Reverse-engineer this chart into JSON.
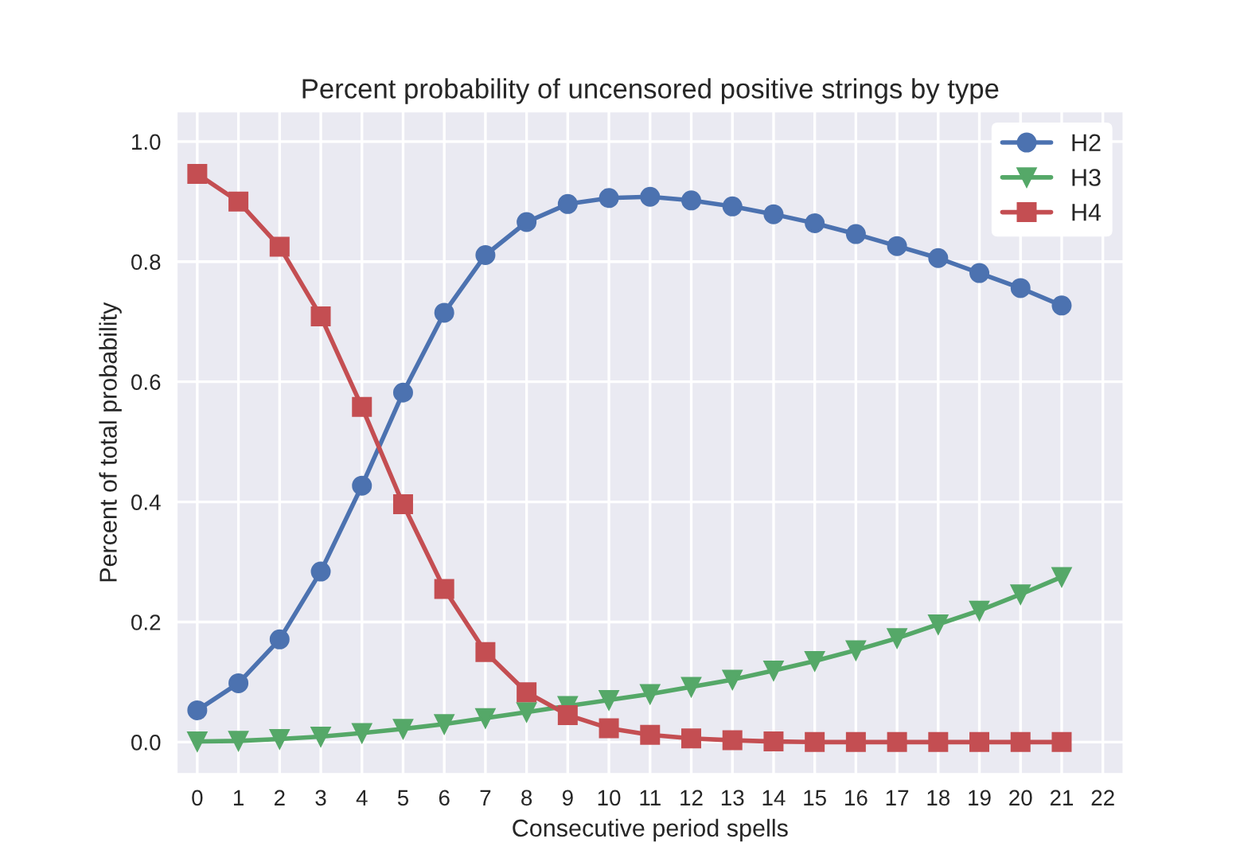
{
  "chart_data": {
    "type": "line",
    "title": "Percent probability of uncensored positive strings by type",
    "xlabel": "Consecutive period spells",
    "ylabel": "Percent of total probability",
    "x": [
      0,
      1,
      2,
      3,
      4,
      5,
      6,
      7,
      8,
      9,
      10,
      11,
      12,
      13,
      14,
      15,
      16,
      17,
      18,
      19,
      20,
      21
    ],
    "series": [
      {
        "name": "H2",
        "color": "#4c72b0",
        "marker": "circle",
        "values": [
          0.053,
          0.098,
          0.171,
          0.284,
          0.427,
          0.582,
          0.715,
          0.811,
          0.866,
          0.896,
          0.906,
          0.908,
          0.902,
          0.892,
          0.879,
          0.864,
          0.846,
          0.826,
          0.806,
          0.781,
          0.756,
          0.727
        ]
      },
      {
        "name": "H3",
        "color": "#55a868",
        "marker": "triangle",
        "values": [
          0.001,
          0.002,
          0.005,
          0.009,
          0.015,
          0.022,
          0.03,
          0.04,
          0.05,
          0.06,
          0.07,
          0.08,
          0.092,
          0.104,
          0.119,
          0.135,
          0.153,
          0.173,
          0.196,
          0.219,
          0.246,
          0.275
        ]
      },
      {
        "name": "H4",
        "color": "#c44e52",
        "marker": "square",
        "values": [
          0.946,
          0.9,
          0.825,
          0.709,
          0.558,
          0.396,
          0.255,
          0.15,
          0.083,
          0.045,
          0.023,
          0.012,
          0.006,
          0.003,
          0.001,
          0.0,
          0.0,
          0.0,
          0.0,
          0.0,
          0.0,
          0.0
        ]
      }
    ],
    "xlim": [
      -0.5,
      22.5
    ],
    "xticks": [
      0,
      1,
      2,
      3,
      4,
      5,
      6,
      7,
      8,
      9,
      10,
      11,
      12,
      13,
      14,
      15,
      16,
      17,
      18,
      19,
      20,
      21,
      22
    ],
    "ylim": [
      -0.053,
      1.05
    ],
    "yticks": [
      {
        "value": 0,
        "label": "0.0"
      },
      0.2,
      0.4,
      0.6,
      0.8,
      {
        "value": 1,
        "label": "1.0"
      }
    ],
    "grid": true,
    "legend": "top right",
    "line_style": "solid"
  }
}
